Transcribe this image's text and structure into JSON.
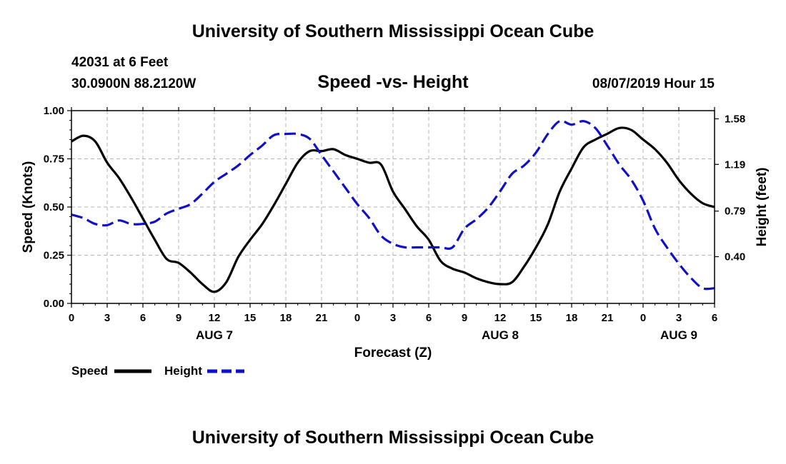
{
  "header": {
    "title": "University of Southern Mississippi Ocean Cube",
    "station": "42031 at 6 Feet",
    "location": "30.0900N 88.2120W",
    "chart_title": "Speed -vs- Height",
    "timestamp": "08/07/2019 Hour 15"
  },
  "footer": {
    "title": "University of Southern Mississippi Ocean Cube"
  },
  "colors": {
    "speed": "#000000",
    "height": "#1010c8",
    "grid": "#b4b4b4"
  },
  "chart_data": {
    "type": "line",
    "title": "Speed -vs- Height",
    "xlabel": "Forecast (Z)",
    "ylabel": "Speed (Knots)",
    "y2label": "Height (feet)",
    "x_unit": "hours from Aug 7 00Z",
    "xlim": [
      0,
      54
    ],
    "ylim": [
      0,
      1.0
    ],
    "y2lim": [
      0.0,
      1.65
    ],
    "grid": true,
    "x_ticks": [
      0,
      3,
      6,
      9,
      12,
      15,
      18,
      21,
      24,
      27,
      30,
      33,
      36,
      39,
      42,
      45,
      48,
      51,
      54
    ],
    "x_tick_labels": [
      "0",
      "3",
      "6",
      "9",
      "12",
      "15",
      "18",
      "21",
      "0",
      "3",
      "6",
      "9",
      "12",
      "15",
      "18",
      "21",
      "0",
      "3",
      "6"
    ],
    "day_labels": [
      {
        "x": 12,
        "label": "AUG 7"
      },
      {
        "x": 36,
        "label": "AUG 8"
      },
      {
        "x": 51,
        "label": "AUG 9"
      }
    ],
    "y_ticks": [
      0.0,
      0.25,
      0.5,
      0.75,
      1.0
    ],
    "y_tick_labels": [
      "0.00",
      "0.25",
      "0.50",
      "0.75",
      "1.00"
    ],
    "y2_ticks": [
      0.4,
      0.79,
      1.19,
      1.58
    ],
    "y2_tick_labels": [
      "0.40",
      "0.79",
      "1.19",
      "1.58"
    ],
    "legend_position": "bottom-left",
    "series": [
      {
        "name": "Speed",
        "axis": "left",
        "style": "solid",
        "x": [
          0,
          1,
          2,
          3,
          4,
          5,
          6,
          7,
          8,
          9,
          10,
          11,
          12,
          13,
          14,
          15,
          16,
          17,
          18,
          19,
          20,
          21,
          22,
          23,
          24,
          25,
          26,
          27,
          28,
          29,
          30,
          31,
          32,
          33,
          34,
          35,
          36,
          37,
          38,
          39,
          40,
          41,
          42,
          43,
          44,
          45,
          46,
          47,
          48,
          49,
          50,
          51,
          52,
          53,
          54
        ],
        "values": [
          0.84,
          0.87,
          0.84,
          0.73,
          0.65,
          0.55,
          0.44,
          0.33,
          0.23,
          0.21,
          0.16,
          0.1,
          0.06,
          0.11,
          0.24,
          0.33,
          0.41,
          0.51,
          0.62,
          0.73,
          0.79,
          0.79,
          0.8,
          0.77,
          0.75,
          0.73,
          0.72,
          0.58,
          0.49,
          0.4,
          0.33,
          0.22,
          0.18,
          0.16,
          0.13,
          0.11,
          0.1,
          0.11,
          0.19,
          0.29,
          0.41,
          0.58,
          0.7,
          0.81,
          0.85,
          0.88,
          0.91,
          0.9,
          0.85,
          0.8,
          0.73,
          0.64,
          0.57,
          0.52,
          0.5
        ]
      },
      {
        "name": "Height",
        "axis": "right",
        "style": "dashed",
        "x": [
          0,
          1,
          2,
          3,
          4,
          5,
          6,
          7,
          8,
          9,
          10,
          11,
          12,
          13,
          14,
          15,
          16,
          17,
          18,
          19,
          20,
          21,
          22,
          23,
          24,
          25,
          26,
          27,
          28,
          29,
          30,
          31,
          32,
          33,
          34,
          35,
          36,
          37,
          38,
          39,
          40,
          41,
          42,
          43,
          44,
          45,
          46,
          47,
          48,
          49,
          50,
          51,
          52,
          53,
          54
        ],
        "values": [
          0.76,
          0.73,
          0.68,
          0.67,
          0.71,
          0.68,
          0.68,
          0.7,
          0.77,
          0.81,
          0.85,
          0.94,
          1.04,
          1.11,
          1.18,
          1.27,
          1.35,
          1.44,
          1.45,
          1.45,
          1.41,
          1.27,
          1.13,
          0.99,
          0.85,
          0.73,
          0.58,
          0.51,
          0.48,
          0.48,
          0.48,
          0.48,
          0.48,
          0.64,
          0.72,
          0.82,
          0.96,
          1.11,
          1.18,
          1.29,
          1.45,
          1.56,
          1.53,
          1.56,
          1.5,
          1.35,
          1.19,
          1.06,
          0.88,
          0.64,
          0.48,
          0.34,
          0.22,
          0.13,
          0.13
        ]
      }
    ]
  }
}
